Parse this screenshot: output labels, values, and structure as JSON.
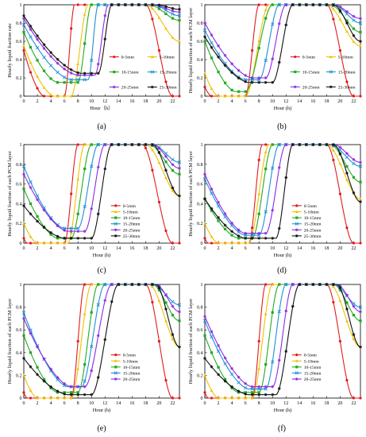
{
  "figure": {
    "series_colors": [
      "#e41a1c",
      "#f0c000",
      "#22aa22",
      "#1e8fd6",
      "#8a2be2",
      "#111111"
    ],
    "markers": [
      "circle",
      "triangle",
      "square",
      "x",
      "star",
      "star"
    ],
    "hours": [
      0,
      1,
      2,
      3,
      4,
      5,
      6,
      7,
      8,
      9,
      10,
      11,
      12,
      13,
      14,
      15,
      16,
      17,
      18,
      19,
      20,
      21,
      22,
      23
    ]
  },
  "chart_data": [
    {
      "type": "line",
      "panel_label": "(a)",
      "xlabel": "Hour（h）",
      "ylabel": "Hourly liquid fraction rate",
      "xlim": [
        0,
        23
      ],
      "ylim": [
        0,
        1
      ],
      "x_ticks": [
        "0",
        "2",
        "4",
        "6",
        "8",
        "10",
        "12",
        "14",
        "16",
        "18",
        "20",
        "22"
      ],
      "y_ticks": [
        "0",
        "0.2",
        "0.4",
        "0.6",
        "0.8",
        "1"
      ],
      "legend_position": "center",
      "legend_cols": 2,
      "series": [
        {
          "name": "0-5mm",
          "p": {
            "s": 0.5,
            "m": 0,
            "t": 3,
            "r1": 6,
            "r2": 7.5,
            "f1": 18,
            "f2": 22,
            "e": 0
          }
        },
        {
          "name": "5-10mm",
          "p": {
            "s": 0.55,
            "m": 0,
            "t": 4.5,
            "r1": 7,
            "r2": 9.5,
            "f1": 18,
            "f2": 23,
            "e": 0.6
          }
        },
        {
          "name": "10-15mm",
          "p": {
            "s": 0.7,
            "m": 0.15,
            "t": 5,
            "r1": 8,
            "r2": 10,
            "f1": 18.5,
            "f2": 23,
            "e": 0.83
          }
        },
        {
          "name": "15-20mm",
          "p": {
            "s": 0.78,
            "m": 0.18,
            "t": 7,
            "r1": 9.5,
            "r2": 11,
            "f1": 19,
            "f2": 23,
            "e": 0.88
          }
        },
        {
          "name": "20-25mm",
          "p": {
            "s": 0.85,
            "m": 0.23,
            "t": 8,
            "r1": 10.5,
            "r2": 12.5,
            "f1": 19,
            "f2": 23,
            "e": 0.92
          }
        },
        {
          "name": "25-30mm",
          "p": {
            "s": 0.88,
            "m": 0.25,
            "t": 8.5,
            "r1": 11,
            "r2": 13,
            "f1": 19.5,
            "f2": 23,
            "e": 0.95
          }
        }
      ]
    },
    {
      "type": "line",
      "panel_label": "(b)",
      "xlabel": "Hour (h)",
      "ylabel": "Hourly liquid fraction of each PCM layer",
      "xlim": [
        0,
        23
      ],
      "ylim": [
        0,
        1
      ],
      "x_ticks": [
        "0",
        "2",
        "4",
        "6",
        "8",
        "10",
        "12",
        "14",
        "16",
        "18",
        "20",
        "22"
      ],
      "y_ticks": [
        "0",
        "0.2",
        "0.4",
        "0.6",
        "0.8",
        "1"
      ],
      "legend_position": "center",
      "legend_cols": 2,
      "series": [
        {
          "name": "0-5mm",
          "p": {
            "s": 0.1,
            "m": 0,
            "t": 1,
            "r1": 6,
            "r2": 8,
            "f1": 18,
            "f2": 22,
            "e": 0
          }
        },
        {
          "name": "5-10mm",
          "p": {
            "s": 0.25,
            "m": 0,
            "t": 2,
            "r1": 6,
            "r2": 9.5,
            "f1": 18,
            "f2": 23,
            "e": 0.55
          }
        },
        {
          "name": "10-15mm",
          "p": {
            "s": 0.6,
            "m": 0.05,
            "t": 4.5,
            "r1": 6,
            "r2": 10,
            "f1": 18.5,
            "f2": 23,
            "e": 0.7
          }
        },
        {
          "name": "15-20mm",
          "p": {
            "s": 0.72,
            "m": 0.18,
            "t": 6,
            "r1": 8,
            "r2": 11,
            "f1": 19,
            "f2": 23,
            "e": 0.8
          }
        },
        {
          "name": "20-25mm",
          "p": {
            "s": 0.8,
            "m": 0.2,
            "t": 7,
            "r1": 9,
            "r2": 12,
            "f1": 19,
            "f2": 23,
            "e": 0.85
          }
        },
        {
          "name": "25-30mm",
          "p": {
            "s": 0.65,
            "m": 0.15,
            "t": 6.5,
            "r1": 10,
            "r2": 13,
            "f1": 19,
            "f2": 23,
            "e": 0.6
          }
        }
      ]
    },
    {
      "type": "line",
      "panel_label": "(c)",
      "xlabel": "Hour (h)",
      "ylabel": "Hourly liquid fraction of each PCM layer",
      "xlim": [
        0,
        23
      ],
      "ylim": [
        0,
        1
      ],
      "x_ticks": [
        "0",
        "2",
        "4",
        "6",
        "8",
        "10",
        "12",
        "14",
        "16",
        "18",
        "20",
        "22"
      ],
      "y_ticks": [
        "0",
        "0.2",
        "0.4",
        "0.6",
        "0.8",
        "1"
      ],
      "legend_position": "right",
      "legend_cols": 1,
      "series": [
        {
          "name": "0-5mm",
          "p": {
            "s": 0.05,
            "m": 0,
            "t": 0.5,
            "r1": 6,
            "r2": 8,
            "f1": 17.5,
            "f2": 22,
            "e": 0
          }
        },
        {
          "name": "5-10mm",
          "p": {
            "s": 0.2,
            "m": 0,
            "t": 2,
            "r1": 6.5,
            "r2": 9,
            "f1": 18,
            "f2": 23,
            "e": 0.48
          }
        },
        {
          "name": "10-15mm",
          "p": {
            "s": 0.55,
            "m": 0.05,
            "t": 5,
            "r1": 7,
            "r2": 10,
            "f1": 18.5,
            "f2": 23,
            "e": 0.7
          }
        },
        {
          "name": "15-20mm",
          "p": {
            "s": 0.78,
            "m": 0.15,
            "t": 6,
            "r1": 8,
            "r2": 11,
            "f1": 19,
            "f2": 23,
            "e": 0.82
          }
        },
        {
          "name": "20-25mm",
          "p": {
            "s": 0.7,
            "m": 0.12,
            "t": 6.5,
            "r1": 9,
            "r2": 12,
            "f1": 19,
            "f2": 23,
            "e": 0.76
          }
        },
        {
          "name": "25-30mm",
          "p": {
            "s": 0.38,
            "m": 0.05,
            "t": 6,
            "r1": 10,
            "r2": 13,
            "f1": 19,
            "f2": 23,
            "e": 0.48
          }
        }
      ]
    },
    {
      "type": "line",
      "panel_label": "(d)",
      "xlabel": "Hour (h)",
      "ylabel": "Hourly liquid fraction of each PCM layer",
      "xlim": [
        0,
        23
      ],
      "ylim": [
        0,
        1
      ],
      "x_ticks": [
        "0",
        "2",
        "4",
        "6",
        "8",
        "10",
        "12",
        "14",
        "16",
        "18",
        "20",
        "22"
      ],
      "y_ticks": [
        "0",
        "0.2",
        "0.4",
        "0.6",
        "0.8",
        "1"
      ],
      "legend_position": "right",
      "legend_cols": 1,
      "series": [
        {
          "name": "0-5mm",
          "p": {
            "s": 0.05,
            "m": 0,
            "t": 0.5,
            "r1": 6.5,
            "r2": 8.5,
            "f1": 18,
            "f2": 22,
            "e": 0
          }
        },
        {
          "name": "5-10mm",
          "p": {
            "s": 0.2,
            "m": 0,
            "t": 2,
            "r1": 6.5,
            "r2": 9.5,
            "f1": 18,
            "f2": 23,
            "e": 0.45
          }
        },
        {
          "name": "10-15mm",
          "p": {
            "s": 0.45,
            "m": 0.05,
            "t": 5,
            "r1": 7,
            "r2": 10,
            "f1": 18.5,
            "f2": 23,
            "e": 0.62
          }
        },
        {
          "name": "15-20mm",
          "p": {
            "s": 0.65,
            "m": 0.08,
            "t": 6,
            "r1": 8,
            "r2": 11,
            "f1": 18.5,
            "f2": 23,
            "e": 0.78
          }
        },
        {
          "name": "20-25mm",
          "p": {
            "s": 0.7,
            "m": 0.1,
            "t": 6,
            "r1": 9,
            "r2": 12,
            "f1": 19,
            "f2": 23,
            "e": 0.82
          }
        },
        {
          "name": "25-30mm",
          "p": {
            "s": 0.45,
            "m": 0.05,
            "t": 6,
            "r1": 10.5,
            "r2": 13,
            "f1": 19,
            "f2": 23,
            "e": 0.42
          }
        }
      ]
    },
    {
      "type": "line",
      "panel_label": "(e)",
      "xlabel": "Hour (h)",
      "ylabel": "Hourly liquid fraction of each PCM layer",
      "xlim": [
        0,
        23
      ],
      "ylim": [
        0,
        1
      ],
      "x_ticks": [
        "0",
        "2",
        "4",
        "6",
        "8",
        "10",
        "12",
        "14",
        "16",
        "18",
        "20",
        "22"
      ],
      "y_ticks": [
        "0",
        "0.2",
        "0.4",
        "0.6",
        "0.8",
        "1"
      ],
      "legend_position": "right",
      "legend_cols": 1,
      "series": [
        {
          "name": "0-5mm",
          "p": {
            "s": 0.05,
            "m": 0,
            "t": 0.5,
            "r1": 7,
            "r2": 9,
            "f1": 18,
            "f2": 22,
            "e": 0
          }
        },
        {
          "name": "5-10mm",
          "p": {
            "s": 0.2,
            "m": 0,
            "t": 2,
            "r1": 7,
            "r2": 10,
            "f1": 18.5,
            "f2": 23,
            "e": 0.45
          }
        },
        {
          "name": "10-15mm",
          "p": {
            "s": 0.55,
            "m": 0.05,
            "t": 5,
            "r1": 8,
            "r2": 11,
            "f1": 19,
            "f2": 23,
            "e": 0.68
          }
        },
        {
          "name": "15-20mm",
          "p": {
            "s": 0.75,
            "m": 0.1,
            "t": 6.5,
            "r1": 8.5,
            "r2": 12,
            "f1": 19,
            "f2": 23,
            "e": 0.82
          }
        },
        {
          "name": "20-25mm",
          "p": {
            "s": 0.7,
            "m": 0.1,
            "t": 7,
            "r1": 9,
            "r2": 13,
            "f1": 19.5,
            "f2": 23,
            "e": 0.76
          }
        },
        {
          "name": "",
          "p": {
            "s": 0.35,
            "m": 0.03,
            "t": 6.5,
            "r1": 10,
            "r2": 14,
            "f1": 19.5,
            "f2": 23,
            "e": 0.45
          }
        }
      ]
    },
    {
      "type": "line",
      "panel_label": "(f)",
      "xlabel": "Hour (h)",
      "ylabel": "Hourly liquid fraction of each PCM layer",
      "xlim": [
        0,
        23
      ],
      "ylim": [
        0,
        1
      ],
      "x_ticks": [
        "0",
        "2",
        "4",
        "6",
        "8",
        "10",
        "12",
        "14",
        "16",
        "18",
        "20",
        "22"
      ],
      "y_ticks": [
        "0",
        "0.2",
        "0.4",
        "0.6",
        "0.8",
        "1"
      ],
      "legend_position": "right",
      "legend_cols": 1,
      "series": [
        {
          "name": "0-5mm",
          "p": {
            "s": 0.05,
            "m": 0,
            "t": 0.5,
            "r1": 7,
            "r2": 9,
            "f1": 18,
            "f2": 22,
            "e": 0
          }
        },
        {
          "name": "5-10mm",
          "p": {
            "s": 0.2,
            "m": 0,
            "t": 2,
            "r1": 7,
            "r2": 10,
            "f1": 18.5,
            "f2": 23,
            "e": 0.45
          }
        },
        {
          "name": "10-15mm",
          "p": {
            "s": 0.55,
            "m": 0.05,
            "t": 5,
            "r1": 8,
            "r2": 11,
            "f1": 19,
            "f2": 23,
            "e": 0.68
          }
        },
        {
          "name": "15-20mm",
          "p": {
            "s": 0.68,
            "m": 0.08,
            "t": 6.5,
            "r1": 9,
            "r2": 12,
            "f1": 19,
            "f2": 23,
            "e": 0.8
          }
        },
        {
          "name": "20-25mm",
          "p": {
            "s": 0.72,
            "m": 0.1,
            "t": 7,
            "r1": 10,
            "r2": 13,
            "f1": 19.5,
            "f2": 23,
            "e": 0.76
          }
        },
        {
          "name": "",
          "p": {
            "s": 0.35,
            "m": 0.03,
            "t": 6.5,
            "r1": 10.5,
            "r2": 14,
            "f1": 19.5,
            "f2": 23,
            "e": 0.45
          }
        }
      ]
    }
  ]
}
